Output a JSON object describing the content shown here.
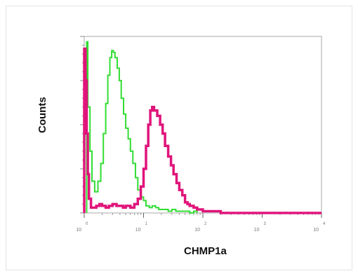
{
  "chart_data": {
    "type": "line",
    "xlabel": "CHMP1a",
    "ylabel": "Counts",
    "xscale": "log",
    "xlim": [
      1,
      10000
    ],
    "ylim": [
      0,
      100
    ],
    "grid": false,
    "x_ticks": [
      {
        "value": 1,
        "base": "10",
        "exp": "0"
      },
      {
        "value": 10,
        "base": "10",
        "exp": "1"
      },
      {
        "value": 100,
        "base": "10",
        "exp": "2"
      },
      {
        "value": 1000,
        "base": "10",
        "exp": "3"
      },
      {
        "value": 10000,
        "base": "10",
        "exp": "4"
      }
    ],
    "series": [
      {
        "color": "#33dd33",
        "x": [
          1.1,
          1.15,
          1.25,
          1.35,
          1.5,
          1.7,
          1.9,
          2.1,
          2.3,
          2.5,
          2.7,
          2.9,
          3.1,
          3.3,
          3.6,
          3.9,
          4.2,
          4.6,
          5.0,
          5.5,
          6.0,
          6.6,
          7.3,
          8.0,
          9.0,
          10.0,
          11.0,
          12.5,
          14.0,
          16.0,
          18.0,
          20.0,
          23.0,
          26.0,
          30.0,
          35.0,
          40.0,
          50.0,
          60.0,
          70.0,
          80.0
        ],
        "y": [
          97,
          60,
          35,
          18,
          12,
          18,
          28,
          45,
          62,
          78,
          88,
          92,
          91,
          88,
          82,
          75,
          65,
          56,
          48,
          42,
          35,
          28,
          20,
          13,
          9,
          7,
          4,
          3,
          4,
          3,
          2,
          2,
          2,
          1,
          2,
          1,
          1,
          1,
          0,
          1,
          0
        ]
      },
      {
        "color": "#e0147a",
        "x": [
          1.0,
          1.05,
          1.1,
          1.15,
          1.2,
          1.3,
          1.4,
          1.6,
          1.8,
          2.0,
          2.3,
          2.6,
          3.0,
          3.5,
          4.0,
          4.5,
          5.0,
          6.0,
          7.0,
          8.0,
          9.0,
          10.0,
          11.0,
          12.0,
          13.0,
          14.0,
          15.0,
          17.0,
          19.0,
          21.0,
          23.0,
          26.0,
          29.0,
          32.0,
          36.0,
          40.0,
          45.0,
          50.0,
          55.0,
          60.0,
          70.0,
          80.0,
          90.0,
          100.0,
          120.0,
          150.0,
          200.0,
          300.0,
          500.0,
          1000.0,
          2000.0,
          5000.0,
          10000.0
        ],
        "y": [
          93,
          75,
          45,
          22,
          8,
          3,
          3,
          4,
          5,
          4,
          3,
          4,
          5,
          4,
          4,
          3,
          4,
          3,
          5,
          8,
          15,
          25,
          38,
          50,
          58,
          60,
          58,
          55,
          50,
          45,
          38,
          32,
          27,
          22,
          17,
          13,
          10,
          6,
          5,
          4,
          3,
          2,
          2,
          1,
          1,
          1,
          0,
          0,
          0,
          0,
          0,
          0,
          0
        ]
      }
    ]
  }
}
